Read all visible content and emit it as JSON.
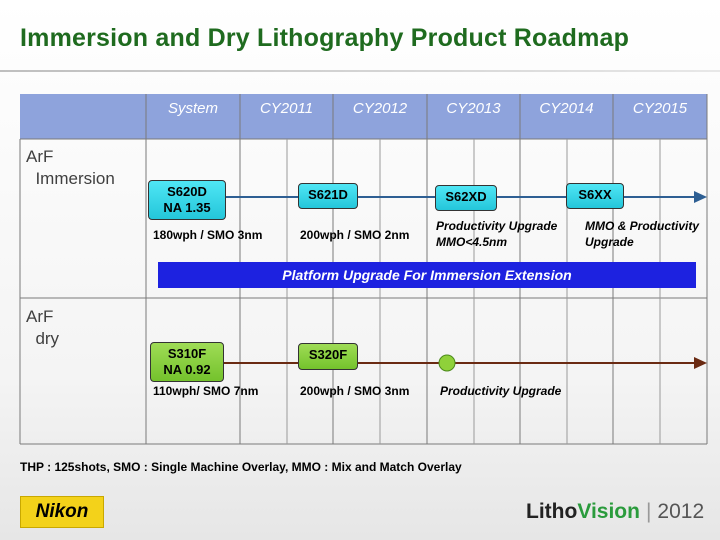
{
  "title": "Immersion and Dry Lithography Product Roadmap",
  "header": {
    "columns": [
      "System",
      "CY2011",
      "CY2012",
      "CY2013",
      "CY2014",
      "CY2015"
    ]
  },
  "rows": {
    "immersion": {
      "label": "ArF\n  Immersion",
      "products": [
        {
          "name": "S620D",
          "sub": "NA 1.35",
          "color": "cyan"
        },
        {
          "name": "S621D",
          "sub": "",
          "color": "cyan"
        },
        {
          "name": "S62XD",
          "sub": "",
          "color": "cyan"
        },
        {
          "name": "S6XX",
          "sub": "",
          "color": "cyan"
        }
      ],
      "notes": [
        "180wph / SMO 3nm",
        "200wph / SMO 2nm",
        "Productivity Upgrade\nMMO<4.5nm",
        "MMO & Productivity\nUpgrade"
      ],
      "banner": "Platform Upgrade For Immersion Extension",
      "arrow_color": "#2e5f93"
    },
    "dry": {
      "label": "ArF\n  dry",
      "products": [
        {
          "name": "S310F",
          "sub": "NA 0.92",
          "color": "green"
        },
        {
          "name": "S320F",
          "sub": "",
          "color": "green"
        }
      ],
      "notes": [
        "110wph/ SMO 7nm",
        "200wph / SMO 3nm",
        "Productivity Upgrade"
      ],
      "arrow_color": "#6a2a12"
    }
  },
  "footnote": "THP : 125shots, SMO : Single Machine Overlay, MMO : Mix and Match Overlay",
  "brand": {
    "logo": "Nikon",
    "product_part1": "Litho",
    "product_part2": "Vision",
    "year": "2012"
  },
  "colors": {
    "title": "#1f6b1f",
    "header_band": "#8ea3dc",
    "banner": "#1d22e0",
    "cyan_box": "#2fd3e6",
    "green_box": "#86cc3a",
    "dot": "#8fd13a"
  }
}
